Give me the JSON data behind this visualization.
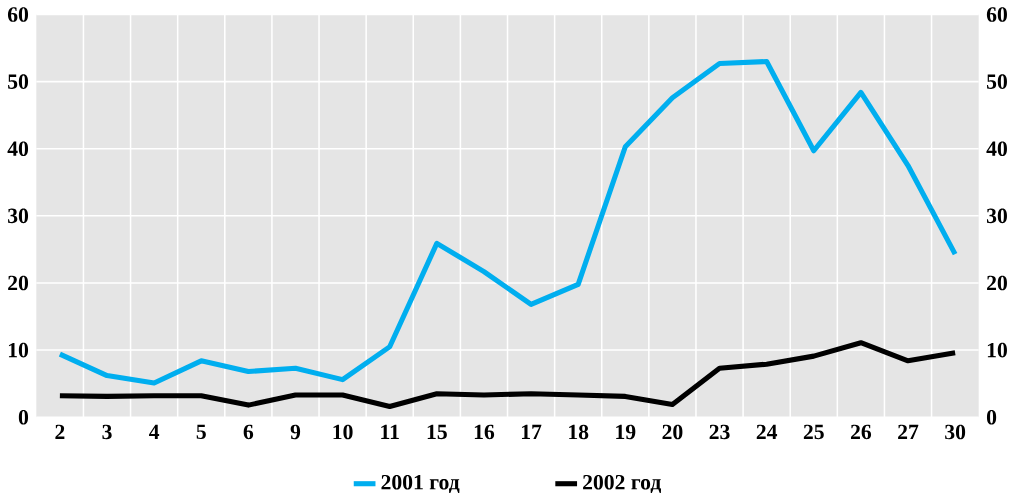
{
  "chart_data": {
    "type": "line",
    "categories": [
      "2",
      "3",
      "4",
      "5",
      "6",
      "9",
      "10",
      "11",
      "15",
      "16",
      "17",
      "18",
      "19",
      "20",
      "23",
      "24",
      "25",
      "26",
      "27",
      "30"
    ],
    "series": [
      {
        "name": "2001 год",
        "color": "#00aeef",
        "values": [
          9.4,
          6.2,
          5.1,
          8.4,
          6.8,
          7.3,
          5.6,
          10.5,
          25.9,
          21.7,
          16.8,
          19.8,
          40.3,
          47.6,
          52.7,
          53.0,
          39.7,
          48.4,
          37.5,
          24.3
        ]
      },
      {
        "name": "2002 год",
        "color": "#000000",
        "values": [
          3.2,
          3.1,
          3.2,
          3.2,
          1.8,
          3.3,
          3.3,
          1.6,
          3.5,
          3.3,
          3.5,
          3.3,
          3.1,
          1.9,
          7.3,
          7.9,
          9.1,
          11.1,
          8.4,
          9.6
        ]
      }
    ],
    "ylim": [
      0,
      60
    ],
    "yticks": [
      0,
      10,
      20,
      30,
      40,
      50,
      60
    ],
    "y2lim": [
      0,
      60
    ],
    "y2ticks": [
      0,
      10,
      20,
      30,
      40,
      50,
      60
    ],
    "grid": true,
    "legend": "bottom",
    "marker": "none",
    "line_style": "solid"
  }
}
